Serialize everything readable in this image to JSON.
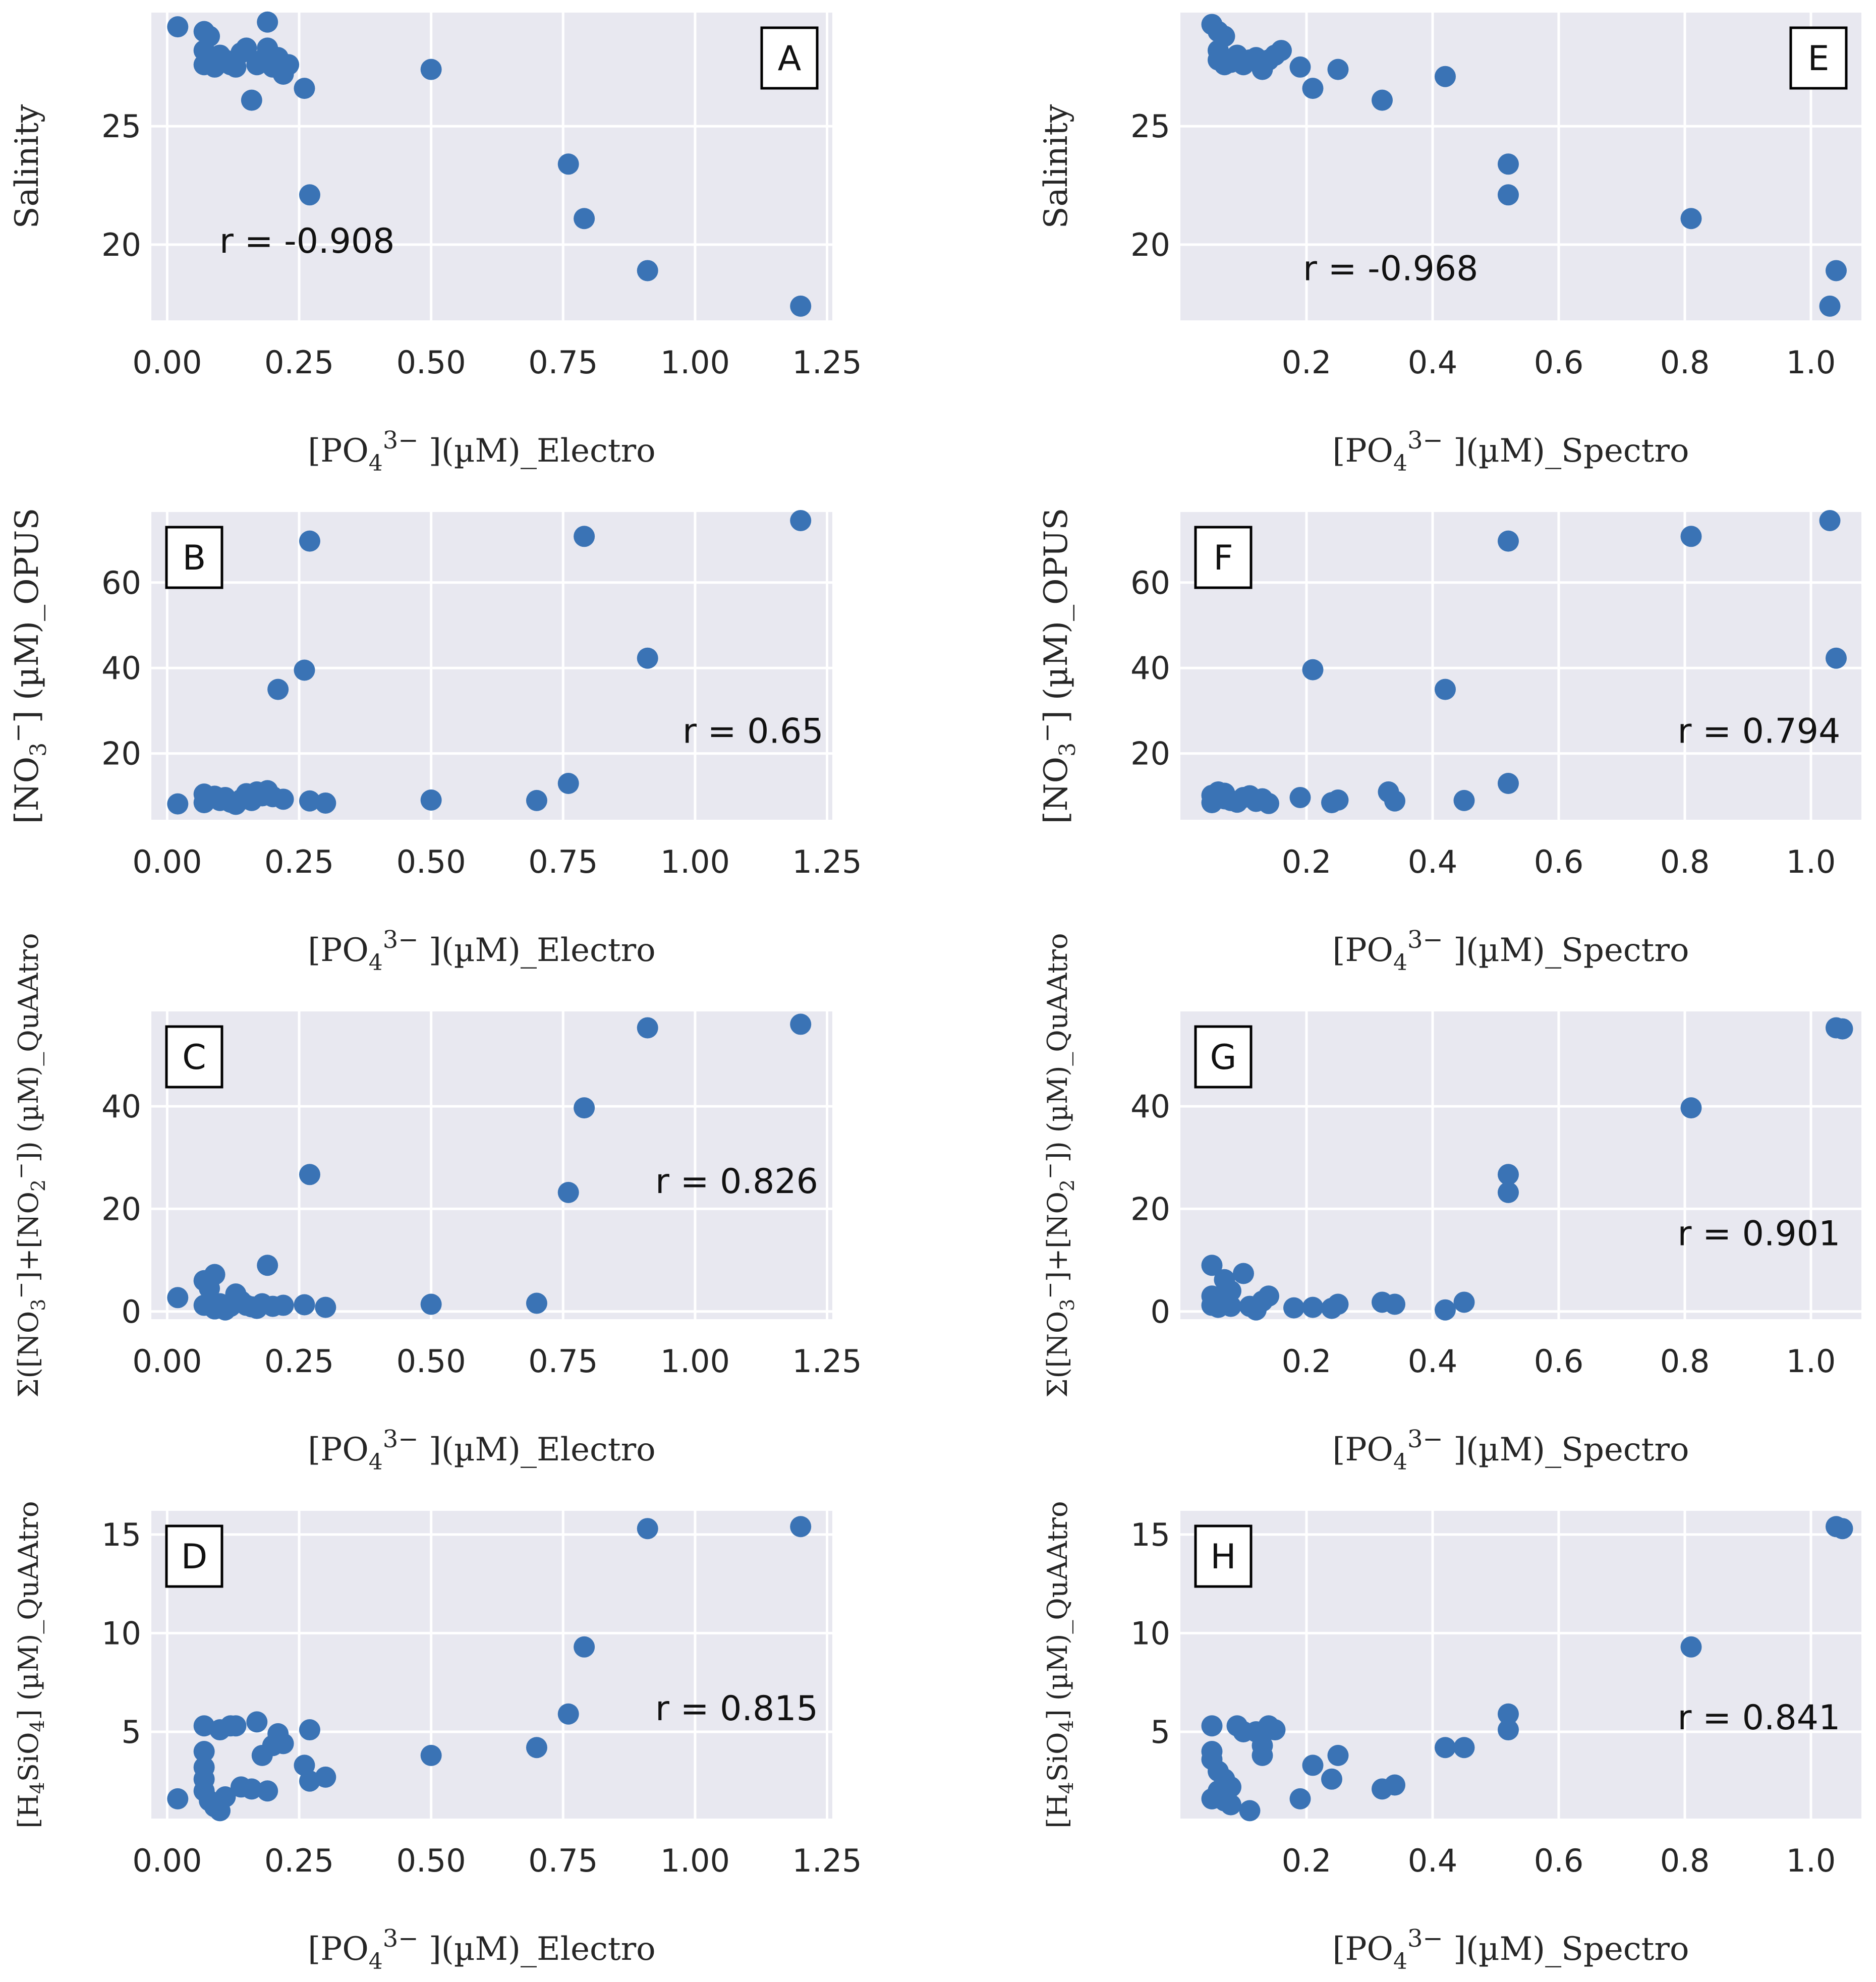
{
  "chart_data": [
    {
      "type": "scatter",
      "panel_label": "A",
      "annotation": "r = -0.908",
      "xlabel": "[PO4 3− ](µM)_Electro",
      "ylabel": "Salinity",
      "xlim": [
        -0.03,
        1.26
      ],
      "ylim": [
        16.8,
        29.8
      ],
      "xticks": [
        0.0,
        0.25,
        0.5,
        0.75,
        1.0,
        1.25
      ],
      "yticks": [
        20,
        25
      ],
      "xtick_labels": [
        "0.00",
        "0.25",
        "0.50",
        "0.75",
        "1.00",
        "1.25"
      ],
      "ytick_labels": [
        "20",
        "25"
      ],
      "points": [
        [
          0.02,
          29.2
        ],
        [
          0.07,
          29.0
        ],
        [
          0.08,
          28.8
        ],
        [
          0.07,
          28.2
        ],
        [
          0.08,
          27.8
        ],
        [
          0.07,
          27.6
        ],
        [
          0.09,
          27.5
        ],
        [
          0.1,
          28.0
        ],
        [
          0.11,
          27.8
        ],
        [
          0.12,
          27.6
        ],
        [
          0.13,
          27.5
        ],
        [
          0.14,
          28.1
        ],
        [
          0.15,
          28.3
        ],
        [
          0.16,
          26.1
        ],
        [
          0.17,
          27.6
        ],
        [
          0.18,
          27.8
        ],
        [
          0.19,
          29.4
        ],
        [
          0.19,
          28.3
        ],
        [
          0.2,
          27.5
        ],
        [
          0.21,
          27.9
        ],
        [
          0.22,
          27.2
        ],
        [
          0.23,
          27.6
        ],
        [
          0.26,
          26.6
        ],
        [
          0.27,
          22.1
        ],
        [
          0.5,
          27.4
        ],
        [
          0.76,
          23.4
        ],
        [
          0.79,
          21.1
        ],
        [
          0.91,
          18.9
        ],
        [
          1.2,
          17.4
        ]
      ]
    },
    {
      "type": "scatter",
      "panel_label": "B",
      "annotation": "r = 0.65",
      "xlabel": "[PO4 3− ](µM)_Electro",
      "ylabel": "[NO3 −] (µM)_OPUS",
      "xlim": [
        -0.03,
        1.26
      ],
      "ylim": [
        4.5,
        76.5
      ],
      "xticks": [
        0.0,
        0.25,
        0.5,
        0.75,
        1.0,
        1.25
      ],
      "yticks": [
        20,
        40,
        60
      ],
      "xtick_labels": [
        "0.00",
        "0.25",
        "0.50",
        "0.75",
        "1.00",
        "1.25"
      ],
      "ytick_labels": [
        "20",
        "40",
        "60"
      ],
      "points": [
        [
          0.02,
          8.2
        ],
        [
          0.07,
          8.5
        ],
        [
          0.07,
          10.5
        ],
        [
          0.08,
          9.5
        ],
        [
          0.09,
          10.0
        ],
        [
          0.1,
          9.0
        ],
        [
          0.11,
          9.7
        ],
        [
          0.12,
          8.6
        ],
        [
          0.13,
          8.1
        ],
        [
          0.14,
          9.2
        ],
        [
          0.15,
          10.6
        ],
        [
          0.16,
          9.0
        ],
        [
          0.17,
          11.0
        ],
        [
          0.18,
          10.1
        ],
        [
          0.19,
          11.3
        ],
        [
          0.2,
          9.9
        ],
        [
          0.22,
          9.3
        ],
        [
          0.21,
          35.0
        ],
        [
          0.26,
          39.5
        ],
        [
          0.27,
          69.7
        ],
        [
          0.27,
          8.9
        ],
        [
          0.3,
          8.4
        ],
        [
          0.5,
          9.1
        ],
        [
          0.7,
          9.0
        ],
        [
          0.76,
          13.0
        ],
        [
          0.79,
          70.8
        ],
        [
          0.91,
          42.3
        ],
        [
          1.2,
          74.5
        ]
      ]
    },
    {
      "type": "scatter",
      "panel_label": "C",
      "annotation": "r = 0.826",
      "xlabel": "[PO4 3− ](µM)_Electro",
      "ylabel": "Σ([NO3 −]+[NO2 −]) (µM)_QuAAtro",
      "xlim": [
        -0.03,
        1.26
      ],
      "ylim": [
        -1.5,
        58.5
      ],
      "xticks": [
        0.0,
        0.25,
        0.5,
        0.75,
        1.0,
        1.25
      ],
      "yticks": [
        0,
        20,
        40
      ],
      "xtick_labels": [
        "0.00",
        "0.25",
        "0.50",
        "0.75",
        "1.00",
        "1.25"
      ],
      "ytick_labels": [
        "0",
        "20",
        "40"
      ],
      "points": [
        [
          0.02,
          2.7
        ],
        [
          0.07,
          6.0
        ],
        [
          0.07,
          1.2
        ],
        [
          0.08,
          4.5
        ],
        [
          0.09,
          7.2
        ],
        [
          0.09,
          0.5
        ],
        [
          0.1,
          1.5
        ],
        [
          0.11,
          0.3
        ],
        [
          0.12,
          1.0
        ],
        [
          0.13,
          3.4
        ],
        [
          0.14,
          2.0
        ],
        [
          0.15,
          1.2
        ],
        [
          0.16,
          0.9
        ],
        [
          0.17,
          0.6
        ],
        [
          0.18,
          1.5
        ],
        [
          0.19,
          9.0
        ],
        [
          0.2,
          1.0
        ],
        [
          0.22,
          1.2
        ],
        [
          0.26,
          1.3
        ],
        [
          0.27,
          26.7
        ],
        [
          0.3,
          0.8
        ],
        [
          0.5,
          1.4
        ],
        [
          0.7,
          1.6
        ],
        [
          0.76,
          23.2
        ],
        [
          0.79,
          39.7
        ],
        [
          0.91,
          55.3
        ],
        [
          1.2,
          56.0
        ]
      ]
    },
    {
      "type": "scatter",
      "panel_label": "D",
      "annotation": "r = 0.815",
      "xlabel": "[PO4 3− ](µM)_Electro",
      "ylabel": "[H4SiO4] (µM)_QuAAtro",
      "xlim": [
        -0.03,
        1.26
      ],
      "ylim": [
        0.6,
        16.2
      ],
      "xticks": [
        0.0,
        0.25,
        0.5,
        0.75,
        1.0,
        1.25
      ],
      "yticks": [
        5,
        10,
        15
      ],
      "xtick_labels": [
        "0.00",
        "0.25",
        "0.50",
        "0.75",
        "1.00",
        "1.25"
      ],
      "ytick_labels": [
        "5",
        "10",
        "15"
      ],
      "points": [
        [
          0.02,
          1.6
        ],
        [
          0.07,
          5.3
        ],
        [
          0.07,
          4.0
        ],
        [
          0.07,
          3.2
        ],
        [
          0.07,
          2.6
        ],
        [
          0.07,
          2.0
        ],
        [
          0.08,
          1.5
        ],
        [
          0.09,
          1.2
        ],
        [
          0.1,
          5.1
        ],
        [
          0.1,
          1.0
        ],
        [
          0.11,
          1.7
        ],
        [
          0.12,
          5.3
        ],
        [
          0.13,
          5.3
        ],
        [
          0.14,
          2.2
        ],
        [
          0.16,
          2.1
        ],
        [
          0.17,
          5.5
        ],
        [
          0.18,
          3.8
        ],
        [
          0.19,
          2.0
        ],
        [
          0.2,
          4.3
        ],
        [
          0.21,
          4.9
        ],
        [
          0.22,
          4.4
        ],
        [
          0.26,
          3.3
        ],
        [
          0.27,
          5.1
        ],
        [
          0.27,
          2.5
        ],
        [
          0.3,
          2.7
        ],
        [
          0.5,
          3.8
        ],
        [
          0.7,
          4.2
        ],
        [
          0.76,
          5.9
        ],
        [
          0.79,
          9.3
        ],
        [
          0.91,
          15.3
        ],
        [
          1.2,
          15.4
        ]
      ]
    },
    {
      "type": "scatter",
      "panel_label": "E",
      "annotation": "r = -0.968",
      "xlabel": "[PO4 3− ](µM)_Spectro",
      "ylabel": "Salinity",
      "xlim": [
        0.0,
        1.08
      ],
      "ylim": [
        16.8,
        29.8
      ],
      "xticks": [
        0.2,
        0.4,
        0.6,
        0.8,
        1.0
      ],
      "yticks": [
        20,
        25
      ],
      "xtick_labels": [
        "0.2",
        "0.4",
        "0.6",
        "0.8",
        "1.0"
      ],
      "ytick_labels": [
        "20",
        "25"
      ],
      "points": [
        [
          0.05,
          29.3
        ],
        [
          0.06,
          29.0
        ],
        [
          0.07,
          28.8
        ],
        [
          0.06,
          28.2
        ],
        [
          0.06,
          27.8
        ],
        [
          0.07,
          27.6
        ],
        [
          0.08,
          27.7
        ],
        [
          0.09,
          28.0
        ],
        [
          0.1,
          27.6
        ],
        [
          0.11,
          27.8
        ],
        [
          0.12,
          27.9
        ],
        [
          0.13,
          27.4
        ],
        [
          0.14,
          27.8
        ],
        [
          0.15,
          28.0
        ],
        [
          0.16,
          28.2
        ],
        [
          0.19,
          27.5
        ],
        [
          0.21,
          26.6
        ],
        [
          0.25,
          27.4
        ],
        [
          0.32,
          26.1
        ],
        [
          0.42,
          27.1
        ],
        [
          0.52,
          23.4
        ],
        [
          0.52,
          22.1
        ],
        [
          0.81,
          21.1
        ],
        [
          1.04,
          18.9
        ],
        [
          1.03,
          17.4
        ]
      ]
    },
    {
      "type": "scatter",
      "panel_label": "F",
      "annotation": "r = 0.794",
      "xlabel": "[PO4 3− ](µM)_Spectro",
      "ylabel": "[NO3 −] (µM)_OPUS",
      "xlim": [
        0.0,
        1.08
      ],
      "ylim": [
        4.5,
        76.5
      ],
      "xticks": [
        0.2,
        0.4,
        0.6,
        0.8,
        1.0
      ],
      "yticks": [
        20,
        40,
        60
      ],
      "xtick_labels": [
        "0.2",
        "0.4",
        "0.6",
        "0.8",
        "1.0"
      ],
      "ytick_labels": [
        "20",
        "40",
        "60"
      ],
      "points": [
        [
          0.05,
          8.5
        ],
        [
          0.05,
          10.2
        ],
        [
          0.06,
          11.0
        ],
        [
          0.07,
          9.4
        ],
        [
          0.07,
          10.7
        ],
        [
          0.08,
          9.0
        ],
        [
          0.09,
          8.6
        ],
        [
          0.1,
          9.7
        ],
        [
          0.11,
          10.1
        ],
        [
          0.12,
          8.8
        ],
        [
          0.13,
          9.4
        ],
        [
          0.14,
          8.3
        ],
        [
          0.19,
          9.7
        ],
        [
          0.21,
          39.6
        ],
        [
          0.24,
          8.5
        ],
        [
          0.25,
          9.1
        ],
        [
          0.33,
          11.0
        ],
        [
          0.34,
          8.9
        ],
        [
          0.42,
          35.0
        ],
        [
          0.45,
          9.0
        ],
        [
          0.52,
          13.0
        ],
        [
          0.52,
          69.7
        ],
        [
          0.81,
          70.8
        ],
        [
          1.04,
          42.3
        ],
        [
          1.03,
          74.5
        ]
      ]
    },
    {
      "type": "scatter",
      "panel_label": "G",
      "annotation": "r = 0.901",
      "xlabel": "[PO4 3− ](µM)_Spectro",
      "ylabel": "Σ([NO3 −]+[NO2 −]) (µM)_QuAAtro",
      "xlim": [
        0.0,
        1.08
      ],
      "ylim": [
        -1.5,
        58.5
      ],
      "xticks": [
        0.2,
        0.4,
        0.6,
        0.8,
        1.0
      ],
      "yticks": [
        0,
        20,
        40
      ],
      "xtick_labels": [
        "0.2",
        "0.4",
        "0.6",
        "0.8",
        "1.0"
      ],
      "ytick_labels": [
        "0",
        "20",
        "40"
      ],
      "points": [
        [
          0.05,
          9.0
        ],
        [
          0.05,
          3.0
        ],
        [
          0.05,
          1.2
        ],
        [
          0.06,
          2.5
        ],
        [
          0.06,
          0.8
        ],
        [
          0.07,
          6.2
        ],
        [
          0.07,
          1.5
        ],
        [
          0.08,
          4.0
        ],
        [
          0.08,
          1.0
        ],
        [
          0.1,
          7.4
        ],
        [
          0.11,
          1.0
        ],
        [
          0.12,
          0.3
        ],
        [
          0.13,
          2.0
        ],
        [
          0.14,
          3.0
        ],
        [
          0.18,
          0.7
        ],
        [
          0.21,
          0.8
        ],
        [
          0.24,
          0.6
        ],
        [
          0.25,
          1.4
        ],
        [
          0.32,
          1.8
        ],
        [
          0.34,
          1.4
        ],
        [
          0.42,
          0.3
        ],
        [
          0.45,
          1.8
        ],
        [
          0.52,
          26.7
        ],
        [
          0.52,
          23.2
        ],
        [
          0.81,
          39.7
        ],
        [
          1.04,
          55.3
        ],
        [
          1.05,
          55.1
        ]
      ]
    },
    {
      "type": "scatter",
      "panel_label": "H",
      "annotation": "r = 0.841",
      "xlabel": "[PO4 3− ](µM)_Spectro",
      "ylabel": "[H4SiO4] (µM)_QuAAtro",
      "xlim": [
        0.0,
        1.08
      ],
      "ylim": [
        0.6,
        16.2
      ],
      "xticks": [
        0.2,
        0.4,
        0.6,
        0.8,
        1.0
      ],
      "yticks": [
        5,
        10,
        15
      ],
      "xtick_labels": [
        "0.2",
        "0.4",
        "0.6",
        "0.8",
        "1.0"
      ],
      "ytick_labels": [
        "5",
        "10",
        "15"
      ],
      "points": [
        [
          0.05,
          5.3
        ],
        [
          0.05,
          4.0
        ],
        [
          0.05,
          3.6
        ],
        [
          0.05,
          1.6
        ],
        [
          0.06,
          2.0
        ],
        [
          0.06,
          3.0
        ],
        [
          0.07,
          2.6
        ],
        [
          0.07,
          1.5
        ],
        [
          0.08,
          2.2
        ],
        [
          0.08,
          1.3
        ],
        [
          0.09,
          5.3
        ],
        [
          0.1,
          5.0
        ],
        [
          0.11,
          1.0
        ],
        [
          0.12,
          5.0
        ],
        [
          0.13,
          4.3
        ],
        [
          0.13,
          3.8
        ],
        [
          0.14,
          5.3
        ],
        [
          0.15,
          5.1
        ],
        [
          0.19,
          1.6
        ],
        [
          0.21,
          3.3
        ],
        [
          0.24,
          2.6
        ],
        [
          0.25,
          3.8
        ],
        [
          0.32,
          2.1
        ],
        [
          0.34,
          2.3
        ],
        [
          0.42,
          4.2
        ],
        [
          0.45,
          4.2
        ],
        [
          0.52,
          5.1
        ],
        [
          0.52,
          5.9
        ],
        [
          0.81,
          9.3
        ],
        [
          1.04,
          15.4
        ],
        [
          1.05,
          15.3
        ]
      ]
    }
  ]
}
